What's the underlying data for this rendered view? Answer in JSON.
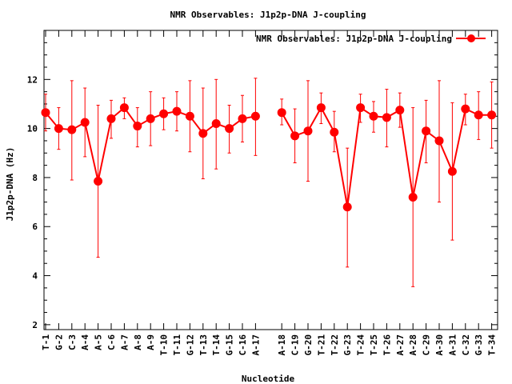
{
  "chart_data": {
    "type": "line",
    "title": "NMR Observables: J1p2p-DNA J-coupling",
    "xlabel": "Nucleotide",
    "ylabel": "J1p2p-DNA (Hz)",
    "ylim": [
      1.8,
      14.0
    ],
    "yticks": [
      2,
      4,
      6,
      8,
      10,
      12
    ],
    "grid": false,
    "legend_position": "top-right",
    "series": [
      {
        "name": "NMR Observables: J1p2p-DNA J-coupling",
        "color": "#ff0000",
        "marker": "circle",
        "points": [
          {
            "slot": 0,
            "label": "T-1",
            "y": 10.65,
            "err_low": 9.9,
            "err_high": 11.4
          },
          {
            "slot": 1,
            "label": "G-2",
            "y": 10.0,
            "err_low": 9.15,
            "err_high": 10.85
          },
          {
            "slot": 2,
            "label": "C-3",
            "y": 9.95,
            "err_low": 7.9,
            "err_high": 11.95
          },
          {
            "slot": 3,
            "label": "A-4",
            "y": 10.25,
            "err_low": 8.85,
            "err_high": 11.65
          },
          {
            "slot": 4,
            "label": "A-5",
            "y": 7.85,
            "err_low": 4.75,
            "err_high": 10.95
          },
          {
            "slot": 5,
            "label": "C-6",
            "y": 10.4,
            "err_low": 9.6,
            "err_high": 11.15
          },
          {
            "slot": 6,
            "label": "A-7",
            "y": 10.85,
            "err_low": 10.4,
            "err_high": 11.25
          },
          {
            "slot": 7,
            "label": "A-8",
            "y": 10.1,
            "err_low": 9.25,
            "err_high": 10.85
          },
          {
            "slot": 8,
            "label": "A-9",
            "y": 10.4,
            "err_low": 9.3,
            "err_high": 11.5
          },
          {
            "slot": 9,
            "label": "T-10",
            "y": 10.6,
            "err_low": 9.95,
            "err_high": 11.25
          },
          {
            "slot": 10,
            "label": "T-11",
            "y": 10.7,
            "err_low": 9.9,
            "err_high": 11.5
          },
          {
            "slot": 11,
            "label": "G-12",
            "y": 10.5,
            "err_low": 9.05,
            "err_high": 11.95
          },
          {
            "slot": 12,
            "label": "T-13",
            "y": 9.8,
            "err_low": 7.95,
            "err_high": 11.65
          },
          {
            "slot": 13,
            "label": "T-14",
            "y": 10.2,
            "err_low": 8.35,
            "err_high": 12.0
          },
          {
            "slot": 14,
            "label": "G-15",
            "y": 10.0,
            "err_low": 9.0,
            "err_high": 10.95
          },
          {
            "slot": 15,
            "label": "C-16",
            "y": 10.4,
            "err_low": 9.45,
            "err_high": 11.35
          },
          {
            "slot": 16,
            "label": "A-17",
            "y": 10.5,
            "err_low": 8.9,
            "err_high": 12.05
          },
          {
            "slot": 18,
            "label": "A-18",
            "y": 10.65,
            "err_low": 10.15,
            "err_high": 11.2
          },
          {
            "slot": 19,
            "label": "C-19",
            "y": 9.7,
            "err_low": 8.6,
            "err_high": 10.8
          },
          {
            "slot": 20,
            "label": "G-20",
            "y": 9.9,
            "err_low": 7.85,
            "err_high": 11.95
          },
          {
            "slot": 21,
            "label": "T-21",
            "y": 10.85,
            "err_low": 10.2,
            "err_high": 11.45
          },
          {
            "slot": 22,
            "label": "T-22",
            "y": 9.85,
            "err_low": 9.05,
            "err_high": 10.7
          },
          {
            "slot": 23,
            "label": "G-23",
            "y": 6.8,
            "err_low": 4.35,
            "err_high": 9.2
          },
          {
            "slot": 24,
            "label": "T-24",
            "y": 10.85,
            "err_low": 10.25,
            "err_high": 11.4
          },
          {
            "slot": 25,
            "label": "T-25",
            "y": 10.5,
            "err_low": 9.85,
            "err_high": 11.1
          },
          {
            "slot": 26,
            "label": "T-26",
            "y": 10.45,
            "err_low": 9.25,
            "err_high": 11.6
          },
          {
            "slot": 27,
            "label": "A-27",
            "y": 10.75,
            "err_low": 10.05,
            "err_high": 11.45
          },
          {
            "slot": 28,
            "label": "A-28",
            "y": 7.2,
            "err_low": 3.55,
            "err_high": 10.85
          },
          {
            "slot": 29,
            "label": "C-29",
            "y": 9.9,
            "err_low": 8.6,
            "err_high": 11.15
          },
          {
            "slot": 30,
            "label": "A-30",
            "y": 9.5,
            "err_low": 7.0,
            "err_high": 11.95
          },
          {
            "slot": 31,
            "label": "A-31",
            "y": 8.25,
            "err_low": 5.45,
            "err_high": 11.05
          },
          {
            "slot": 32,
            "label": "C-32",
            "y": 10.8,
            "err_low": 10.15,
            "err_high": 11.4
          },
          {
            "slot": 33,
            "label": "G-33",
            "y": 10.55,
            "err_low": 9.55,
            "err_high": 11.5
          },
          {
            "slot": 34,
            "label": "T-34",
            "y": 10.55,
            "err_low": 9.2,
            "err_high": 11.9
          }
        ]
      }
    ]
  }
}
